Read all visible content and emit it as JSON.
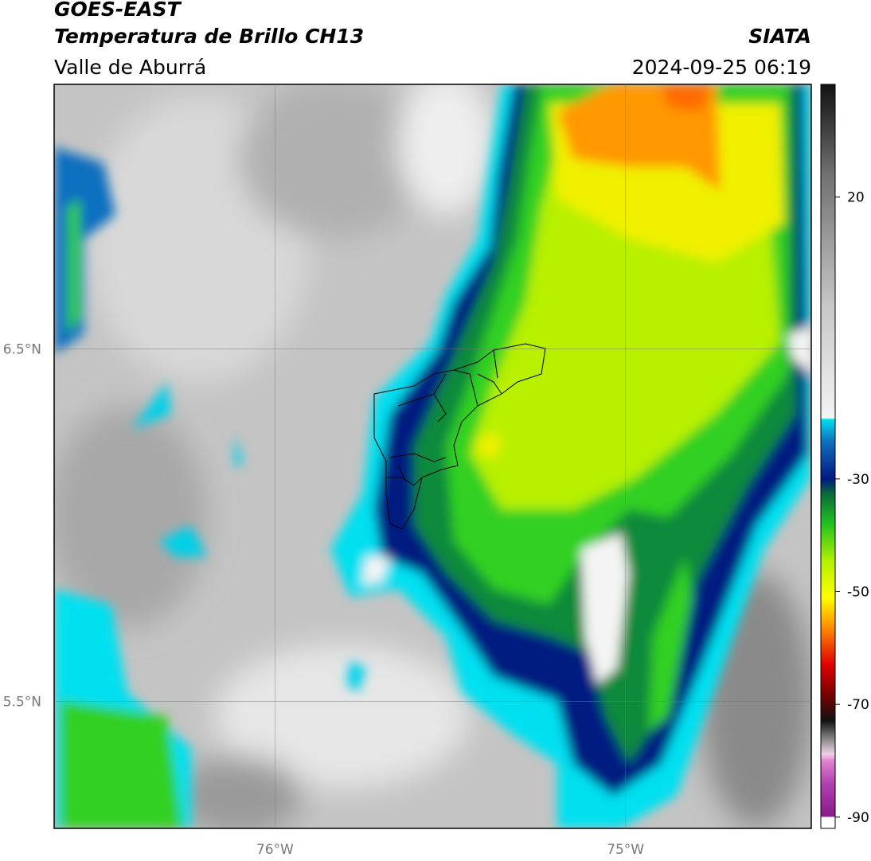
{
  "header": {
    "title": "GOES-EAST",
    "subtitle": "Temperatura de Brillo CH13",
    "region": "Valle de Aburrá",
    "agency": "SIATA",
    "timestamp": "2024-09-25 06:19"
  },
  "map": {
    "lonlim": [
      -76.63,
      -74.47
    ],
    "latlim": [
      5.14,
      7.25
    ],
    "lon_ticks": [
      {
        "value": -76,
        "label": "76°W"
      },
      {
        "value": -75,
        "label": "75°W"
      }
    ],
    "lat_ticks": [
      {
        "value": 6.5,
        "label": "6.5°N"
      },
      {
        "value": 5.5,
        "label": "5.5°N"
      }
    ]
  },
  "colorbar": {
    "lim": [
      -92,
      40
    ],
    "ticks": [
      20,
      -30,
      -50,
      -70,
      -90
    ]
  }
}
